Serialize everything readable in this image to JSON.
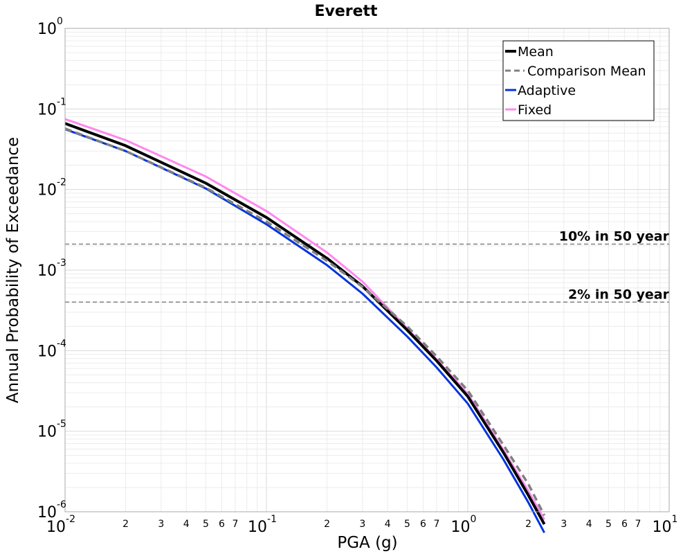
{
  "chart_data": {
    "type": "line",
    "title": "Everett",
    "xlabel": "PGA (g)",
    "ylabel": "Annual Probability of Exceedance",
    "xscale": "log",
    "yscale": "log",
    "xlim": [
      0.01,
      10
    ],
    "ylim": [
      1e-06,
      1
    ],
    "grid": true,
    "legend_placement": "top-right",
    "x_major_ticks": [
      {
        "base": "10",
        "exp": "-2",
        "value": 0.01
      },
      {
        "base": "10",
        "exp": "-1",
        "value": 0.1
      },
      {
        "base": "10",
        "exp": "0",
        "value": 1
      },
      {
        "base": "10",
        "exp": "1",
        "value": 10
      }
    ],
    "x_minor_tick_labels": [
      "2",
      "3",
      "4",
      "5",
      "6",
      "7"
    ],
    "y_major_ticks": [
      {
        "base": "10",
        "exp": "0",
        "value": 1
      },
      {
        "base": "10",
        "exp": "-1",
        "value": 0.1
      },
      {
        "base": "10",
        "exp": "-2",
        "value": 0.01
      },
      {
        "base": "10",
        "exp": "-3",
        "value": 0.001
      },
      {
        "base": "10",
        "exp": "-4",
        "value": 0.0001
      },
      {
        "base": "10",
        "exp": "-5",
        "value": 1e-05
      },
      {
        "base": "10",
        "exp": "-6",
        "value": 1e-06
      }
    ],
    "x": [
      0.01,
      0.02,
      0.05,
      0.1,
      0.2,
      0.3,
      0.5,
      0.7,
      1.0,
      1.5,
      2.0,
      2.4
    ],
    "series": [
      {
        "name": "Mean",
        "color": "#000000",
        "style": "solid",
        "values": [
          0.066,
          0.035,
          0.012,
          0.0045,
          0.0014,
          0.00063,
          0.00018,
          7.5e-05,
          2.7e-05,
          5.5e-06,
          1.6e-06,
          7e-07
        ]
      },
      {
        "name": "Comparison Mean",
        "color": "#808080",
        "style": "dashed",
        "values": [
          0.057,
          0.03,
          0.0105,
          0.004,
          0.0013,
          0.00062,
          0.0002,
          8.5e-05,
          3.2e-05,
          6.8e-06,
          2.2e-06,
          9e-07
        ]
      },
      {
        "name": "Adaptive",
        "color": "#0033dd",
        "style": "solid",
        "values": [
          0.056,
          0.03,
          0.0103,
          0.0037,
          0.00115,
          0.00051,
          0.00015,
          6.2e-05,
          2.2e-05,
          4.5e-06,
          1.3e-06,
          5.5e-07
        ]
      },
      {
        "name": "Fixed",
        "color": "#ff88ee",
        "style": "solid",
        "values": [
          0.075,
          0.041,
          0.0145,
          0.0054,
          0.00165,
          0.00072,
          0.00019,
          7.8e-05,
          2.9e-05,
          5.9e-06,
          1.8e-06,
          8e-07
        ]
      }
    ],
    "reference_lines": [
      {
        "label": "10% in 50 year",
        "y": 0.0021,
        "color": "#808080"
      },
      {
        "label": "2% in 50 year",
        "y": 0.0004,
        "color": "#808080"
      }
    ]
  }
}
